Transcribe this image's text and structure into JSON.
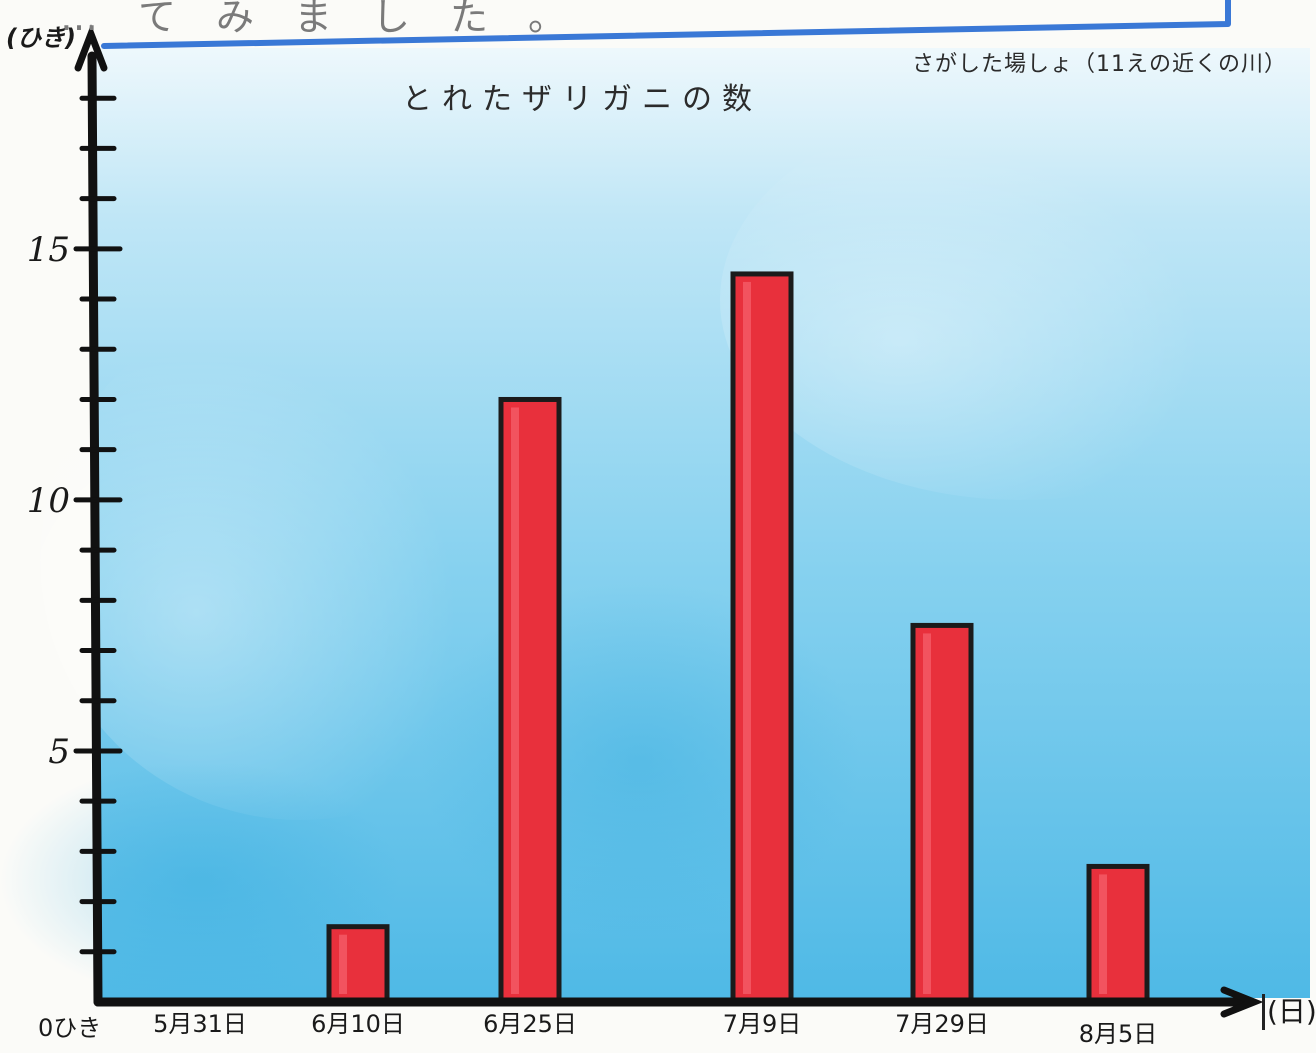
{
  "header": {
    "top_text": "…てみました。",
    "location_note": "さがした場しょ（11えの近くの川）"
  },
  "chart_data": {
    "type": "bar",
    "title": "とれたザリガニの数",
    "xlabel": "(日)",
    "ylabel": "(ひき)",
    "categories": [
      "5月31日",
      "6月10日",
      "6月25日",
      "7月9日",
      "7月29日",
      "8月5日"
    ],
    "values": [
      0,
      1.5,
      12,
      14.5,
      7.5,
      2.7
    ],
    "yticks": [
      5,
      10,
      15
    ],
    "zero_label": "0ひき",
    "ylim": [
      0,
      19
    ],
    "grid": false,
    "legend": "none",
    "bar_color": "#e8303c",
    "background_color": "#6cc6ea"
  }
}
